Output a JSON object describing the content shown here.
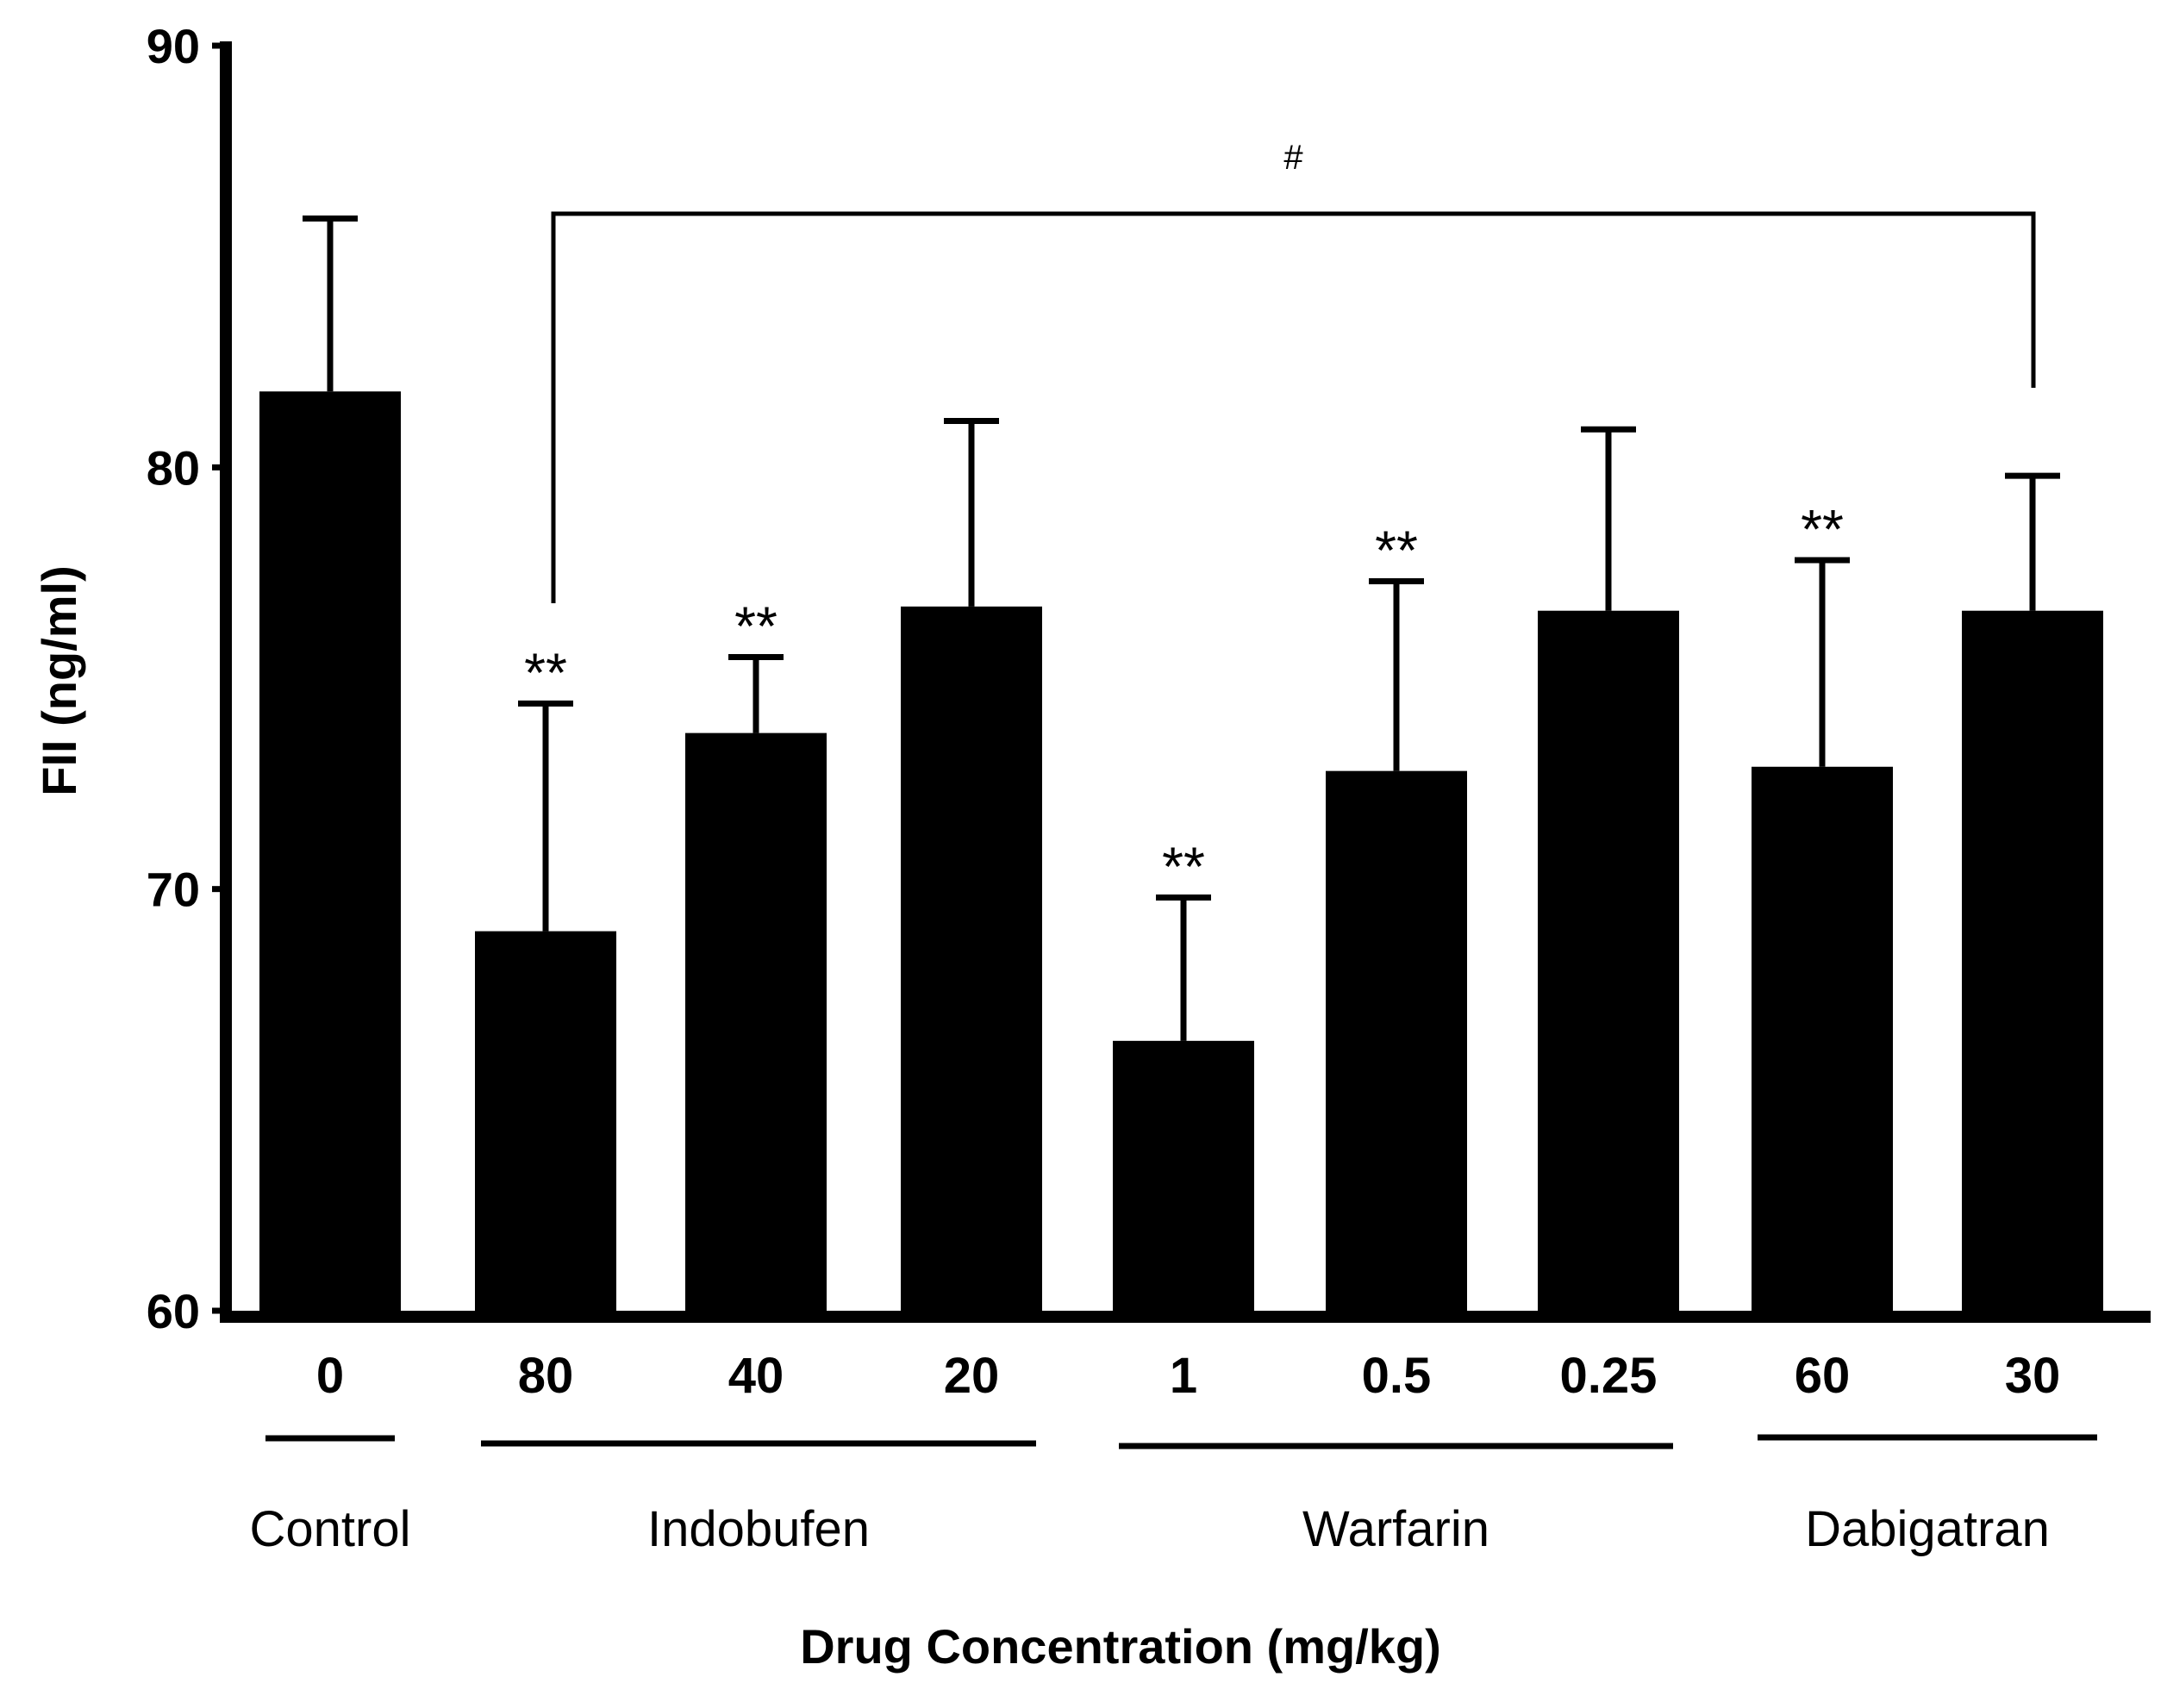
{
  "chart_data": {
    "type": "bar",
    "title": "",
    "xlabel": "Drug Concentration (mg/kg)",
    "ylabel": "FII (ng/ml)",
    "ylim": [
      60,
      90
    ],
    "yticks": [
      "60",
      "70",
      "80",
      "90"
    ],
    "categories": [
      "0",
      "80",
      "40",
      "20",
      "1",
      "0.5",
      "0.25",
      "60",
      "30"
    ],
    "values": [
      81.8,
      69.0,
      73.7,
      76.7,
      66.4,
      72.8,
      76.6,
      72.9,
      76.6
    ],
    "error_upper": [
      85.9,
      74.4,
      75.5,
      81.1,
      69.8,
      77.3,
      80.9,
      77.8,
      79.8
    ],
    "significance": [
      "",
      "**",
      "**",
      "",
      "**",
      "**",
      "",
      "**",
      ""
    ],
    "bar_color": "#000000",
    "groups": [
      {
        "label": "Control",
        "start": 0,
        "end": 0
      },
      {
        "label": "Indobufen",
        "start": 1,
        "end": 3
      },
      {
        "label": "Warfarin",
        "start": 4,
        "end": 6
      },
      {
        "label": "Dabigatran",
        "start": 7,
        "end": 8
      }
    ],
    "bracket": {
      "label": "#",
      "from": 1,
      "to": 8
    }
  }
}
